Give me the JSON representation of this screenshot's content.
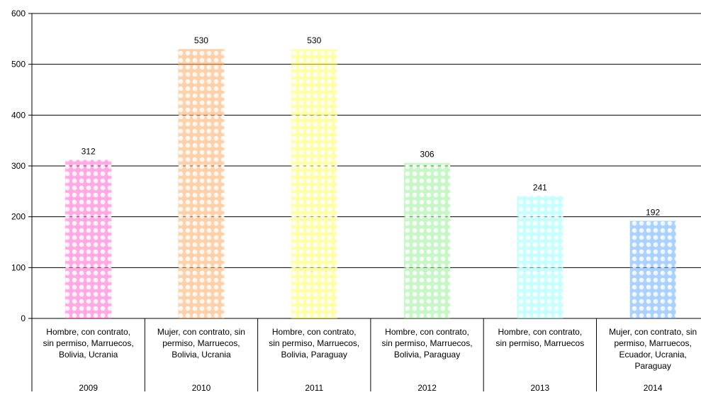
{
  "chart_data": {
    "type": "bar",
    "ylim": [
      0,
      600
    ],
    "yticks": [
      0,
      100,
      200,
      300,
      400,
      500,
      600
    ],
    "grid": true,
    "legend": "none",
    "categories": [
      {
        "label": "Hombre, con contrato, sin permiso, Marruecos, Bolivia, Ucrania",
        "label_lines": [
          "Hombre, con contrato,",
          "sin permiso, Marruecos,",
          "Bolivia, Ucrania"
        ],
        "year": "2009"
      },
      {
        "label": "Mujer, con contrato, sin permiso, Marruecos, Bolivia, Ucrania",
        "label_lines": [
          "Mujer, con contrato, sin",
          "permiso, Marruecos,",
          "Bolivia, Ucrania"
        ],
        "year": "2010"
      },
      {
        "label": "Hombre, con contrato, sin permiso, Marruecos, Bolivia, Paraguay",
        "label_lines": [
          "Hombre, con contrato,",
          "sin permiso, Marruecos,",
          "Bolivia, Paraguay"
        ],
        "year": "2011"
      },
      {
        "label": "Hombre, con contrato, sin permiso, Marruecos, Bolivia, Paraguay",
        "label_lines": [
          "Hombre, con contrato,",
          "sin permiso, Marruecos,",
          "Bolivia, Paraguay"
        ],
        "year": "2012"
      },
      {
        "label": "Hombre, con contrato, sin permiso, Marruecos",
        "label_lines": [
          "Hombre, con contrato,",
          "sin permiso, Marruecos"
        ],
        "year": "2013"
      },
      {
        "label": "Mujer, con contrato, sin permiso, Marruecos, Ecuador, Ucrania, Paraguay",
        "label_lines": [
          "Mujer, con contrato, sin",
          "permiso, Marruecos,",
          "Ecuador, Ucrania,",
          "Paraguay"
        ],
        "year": "2014"
      }
    ],
    "series": [
      {
        "values": [
          312,
          530,
          530,
          306,
          241,
          192
        ],
        "data_labels": [
          "312",
          "530",
          "530",
          "306",
          "241",
          "192"
        ],
        "colors": [
          "#ff66cc",
          "#ffaa66",
          "#ffff66",
          "#99ee99",
          "#99ffff",
          "#66aaff"
        ]
      }
    ]
  }
}
